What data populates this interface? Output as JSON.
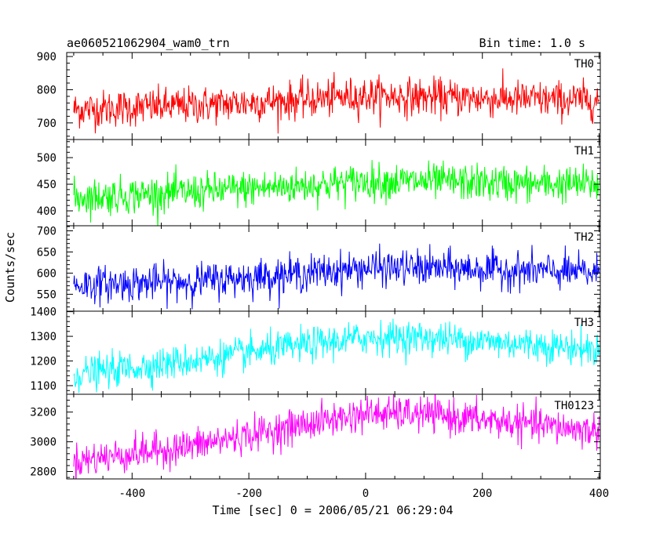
{
  "header": {
    "title": "ae060521062904_wam0_trn",
    "bin_time": "Bin time: 1.0 s"
  },
  "chart_data": {
    "type": "line",
    "title": "ae060521062904_wam0_trn",
    "xlabel": "Time [sec] 0 = 2006/05/21 06:29:04",
    "ylabel": "Counts/sec",
    "xlim": [
      -512,
      402
    ],
    "x_ticks": [
      -400,
      -200,
      0,
      200,
      400
    ],
    "x_step": 1.0,
    "panels": [
      {
        "name": "TH0",
        "color": "#ff0000",
        "ylim": [
          650,
          912
        ],
        "y_ticks": [
          700,
          800,
          900
        ],
        "y_tick_labels": [
          "700",
          "800",
          "900"
        ],
        "trend_x": [
          -500,
          -300,
          -100,
          0,
          100,
          300,
          400
        ],
        "trend_y": [
          740,
          752,
          770,
          782,
          778,
          770,
          768
        ],
        "noise_sd": 28
      },
      {
        "name": "TH1",
        "color": "#00ff00",
        "ylim": [
          372,
          534
        ],
        "y_ticks": [
          400,
          450,
          500
        ],
        "y_tick_labels": [
          "400",
          "450",
          "500"
        ],
        "trend_x": [
          -500,
          -300,
          -100,
          0,
          100,
          300,
          400
        ],
        "trend_y": [
          425,
          435,
          448,
          455,
          455,
          450,
          450
        ],
        "noise_sd": 17
      },
      {
        "name": "TH2",
        "color": "#0000ff",
        "ylim": [
          510,
          712
        ],
        "y_ticks": [
          550,
          600,
          650,
          700
        ],
        "y_tick_labels": [
          "550",
          "600",
          "650",
          "700"
        ],
        "trend_x": [
          -500,
          -300,
          -100,
          0,
          100,
          300,
          400
        ],
        "trend_y": [
          572,
          580,
          600,
          612,
          612,
          605,
          600
        ],
        "noise_sd": 21
      },
      {
        "name": "TH3",
        "color": "#00ffff",
        "ylim": [
          1065,
          1402
        ],
        "y_ticks": [
          1100,
          1200,
          1300,
          1400
        ],
        "y_tick_labels": [
          "1100",
          "1200",
          "1300",
          "1400"
        ],
        "trend_x": [
          -500,
          -300,
          -100,
          0,
          100,
          300,
          400
        ],
        "trend_y": [
          1145,
          1200,
          1265,
          1295,
          1295,
          1265,
          1245
        ],
        "noise_sd": 34
      },
      {
        "name": "TH0123",
        "color": "#ff00ff",
        "ylim": [
          2750,
          3320
        ],
        "y_ticks": [
          2800,
          3000,
          3200
        ],
        "y_tick_labels": [
          "2800",
          "3000",
          "3200"
        ],
        "trend_x": [
          -500,
          -300,
          -100,
          0,
          100,
          300,
          400
        ],
        "trend_y": [
          2870,
          2970,
          3120,
          3190,
          3185,
          3110,
          3070
        ],
        "noise_sd": 58
      }
    ]
  }
}
